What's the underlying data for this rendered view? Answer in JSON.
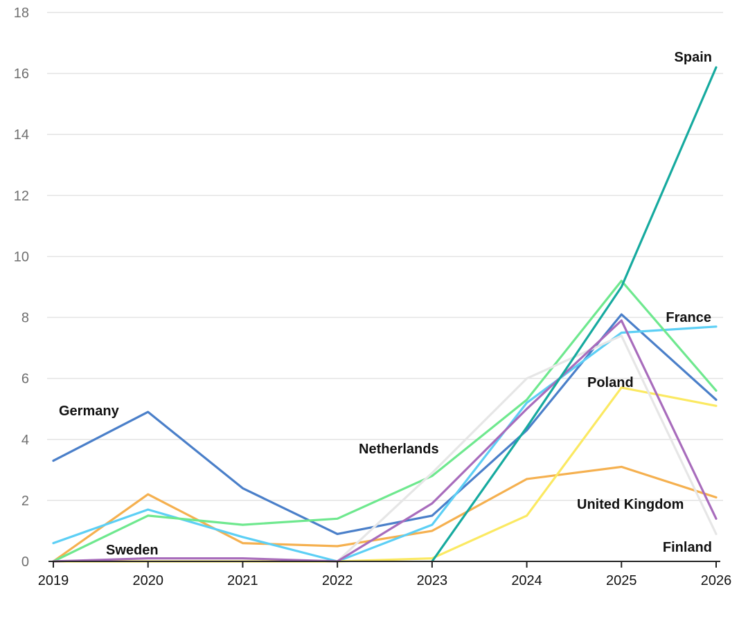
{
  "chart_data": {
    "type": "line",
    "x": [
      "2019",
      "2020",
      "2021",
      "2022",
      "2023",
      "2024",
      "2025",
      "2026"
    ],
    "ylim": [
      0,
      18
    ],
    "yticks": [
      0,
      2,
      4,
      6,
      8,
      10,
      12,
      14,
      16,
      18
    ],
    "grid": true,
    "legend": "none (series labelled directly on the plot)",
    "series": [
      {
        "name": "Germany",
        "color": "#4a7fc9",
        "values": [
          3.3,
          4.9,
          2.4,
          0.9,
          1.5,
          4.3,
          8.1,
          5.3
        ]
      },
      {
        "name": "United Kingdom",
        "color": "#f5b04f",
        "values": [
          0.0,
          2.2,
          0.6,
          0.5,
          1.0,
          2.7,
          3.1,
          2.1
        ]
      },
      {
        "name": "France",
        "color": "#5ccff5",
        "values": [
          0.6,
          1.7,
          0.8,
          0.0,
          1.2,
          5.2,
          7.5,
          7.7
        ]
      },
      {
        "name": "Sweden",
        "color": "#6ee88e",
        "values": [
          0.0,
          1.5,
          1.2,
          1.4,
          2.8,
          5.3,
          9.2,
          5.6
        ]
      },
      {
        "name": "Poland",
        "color": "#fbe962",
        "values": [
          0.0,
          0.0,
          0.0,
          0.0,
          0.1,
          1.5,
          5.7,
          5.1
        ]
      },
      {
        "name": "Finland",
        "color": "#e6e6e6",
        "values": [
          null,
          null,
          null,
          0.0,
          2.9,
          6.0,
          7.4,
          0.9
        ]
      },
      {
        "name": "Netherlands",
        "color": "#a86cbc",
        "values": [
          0.0,
          0.1,
          0.1,
          0.0,
          1.9,
          5.0,
          7.9,
          1.4
        ]
      },
      {
        "name": "Spain",
        "color": "#16aa9f",
        "values": [
          null,
          null,
          null,
          null,
          0.0,
          4.4,
          9.0,
          16.2
        ]
      }
    ]
  }
}
